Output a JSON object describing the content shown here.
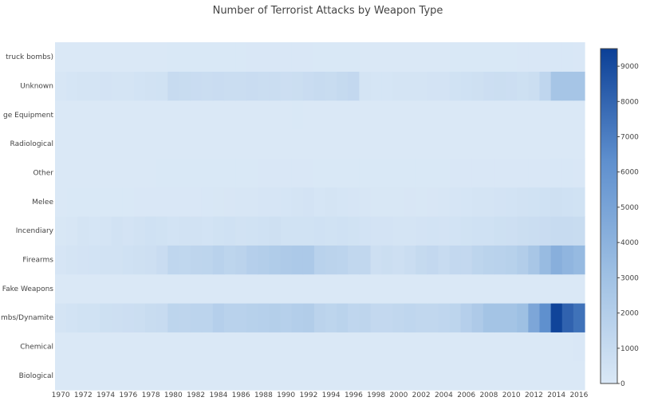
{
  "chart_data": {
    "type": "heatmap",
    "title": "Number of Terrorist Attacks by Weapon Type",
    "xlabel": "",
    "ylabel": "",
    "x": [
      1970,
      1971,
      1972,
      1973,
      1974,
      1975,
      1976,
      1977,
      1978,
      1979,
      1980,
      1981,
      1982,
      1983,
      1984,
      1985,
      1986,
      1987,
      1988,
      1989,
      1990,
      1991,
      1992,
      1993,
      1994,
      1995,
      1996,
      1997,
      1998,
      1999,
      2000,
      2001,
      2002,
      2003,
      2004,
      2005,
      2006,
      2007,
      2008,
      2009,
      2010,
      2011,
      2012,
      2013,
      2014,
      2015,
      2016
    ],
    "x_tick_labels": [
      "1970",
      "1972",
      "1974",
      "1976",
      "1978",
      "1980",
      "1982",
      "1984",
      "1986",
      "1988",
      "1990",
      "1992",
      "1994",
      "1996",
      "1998",
      "2000",
      "2002",
      "2004",
      "2006",
      "2008",
      "2010",
      "2012",
      "2014",
      "2016"
    ],
    "y_labels": [
      "Biological",
      "Chemical",
      "Explosives/Bombs/Dynamite",
      "Fake Weapons",
      "Firearms",
      "Incendiary",
      "Melee",
      "Other",
      "Radiological",
      "Sabotage Equipment",
      "Unknown",
      "Vehicle (not to include vehicle-borne explosives, i.e., car or truck bombs)"
    ],
    "y_tick_texts": [
      "Biological",
      "Chemical",
      "mbs/Dynamite",
      "Fake Weapons",
      "Firearms",
      "Incendiary",
      "Melee",
      "Other",
      "Radiological",
      "ge Equipment",
      "Unknown",
      "truck bombs)"
    ],
    "z": [
      [
        0,
        0,
        0,
        0,
        0,
        0,
        0,
        0,
        0,
        0,
        0,
        0,
        0,
        0,
        0,
        0,
        0,
        0,
        0,
        0,
        0,
        0,
        0,
        0,
        0,
        0,
        0,
        0,
        0,
        0,
        0,
        0,
        0,
        0,
        0,
        0,
        0,
        0,
        0,
        0,
        0,
        0,
        0,
        0,
        0,
        0,
        0
      ],
      [
        0,
        0,
        0,
        0,
        0,
        0,
        0,
        0,
        0,
        0,
        0,
        0,
        0,
        0,
        0,
        0,
        0,
        0,
        0,
        0,
        0,
        0,
        0,
        0,
        0,
        0,
        0,
        0,
        0,
        0,
        0,
        0,
        0,
        0,
        0,
        0,
        0,
        0,
        0,
        0,
        0,
        0,
        0,
        0,
        0,
        0,
        50
      ],
      [
        300,
        400,
        500,
        500,
        650,
        700,
        750,
        800,
        950,
        1000,
        1500,
        1450,
        1550,
        1550,
        1900,
        1700,
        1700,
        1800,
        1850,
        1950,
        1850,
        2000,
        2100,
        1600,
        1500,
        1650,
        1400,
        1450,
        1200,
        1200,
        1300,
        1400,
        1300,
        1300,
        1400,
        1500,
        1900,
        2300,
        2800,
        2800,
        2800,
        3100,
        4800,
        6300,
        9300,
        8100,
        7500
      ],
      [
        0,
        0,
        0,
        0,
        0,
        0,
        0,
        0,
        0,
        0,
        0,
        0,
        0,
        0,
        0,
        0,
        0,
        0,
        0,
        0,
        0,
        0,
        0,
        0,
        0,
        0,
        0,
        0,
        0,
        0,
        0,
        0,
        0,
        0,
        0,
        0,
        0,
        0,
        0,
        0,
        0,
        0,
        0,
        0,
        0,
        0,
        0
      ],
      [
        200,
        300,
        350,
        400,
        450,
        450,
        550,
        600,
        700,
        900,
        1400,
        1350,
        1450,
        1500,
        1700,
        1500,
        1600,
        1900,
        2000,
        2200,
        2300,
        2400,
        2400,
        1700,
        1600,
        1550,
        1300,
        1300,
        700,
        800,
        700,
        850,
        1100,
        1200,
        1000,
        1200,
        1200,
        1500,
        1650,
        1700,
        1800,
        2100,
        2600,
        3400,
        4200,
        3800,
        3500
      ],
      [
        100,
        150,
        300,
        250,
        300,
        450,
        350,
        450,
        550,
        500,
        400,
        450,
        450,
        400,
        500,
        550,
        450,
        500,
        550,
        600,
        500,
        500,
        500,
        550,
        500,
        550,
        500,
        400,
        350,
        350,
        300,
        300,
        350,
        400,
        350,
        400,
        500,
        550,
        550,
        650,
        700,
        800,
        850,
        900,
        1000,
        1000,
        950
      ],
      [
        20,
        30,
        30,
        30,
        30,
        30,
        30,
        40,
        40,
        50,
        60,
        60,
        70,
        80,
        100,
        120,
        140,
        150,
        200,
        200,
        250,
        300,
        350,
        250,
        300,
        250,
        200,
        150,
        100,
        100,
        100,
        120,
        100,
        120,
        150,
        200,
        250,
        300,
        300,
        350,
        400,
        450,
        500,
        550,
        600,
        550,
        500
      ],
      [
        10,
        10,
        10,
        20,
        20,
        20,
        20,
        20,
        20,
        30,
        30,
        30,
        30,
        30,
        30,
        30,
        30,
        30,
        40,
        40,
        40,
        40,
        40,
        30,
        30,
        30,
        30,
        30,
        30,
        30,
        30,
        30,
        30,
        30,
        30,
        40,
        40,
        40,
        40,
        40,
        40,
        50,
        60,
        70,
        80,
        80,
        70
      ],
      [
        0,
        0,
        0,
        0,
        0,
        0,
        0,
        0,
        0,
        0,
        0,
        0,
        0,
        0,
        0,
        0,
        0,
        0,
        0,
        0,
        0,
        0,
        0,
        0,
        0,
        0,
        0,
        0,
        0,
        0,
        0,
        0,
        0,
        0,
        0,
        0,
        0,
        0,
        0,
        0,
        0,
        0,
        0,
        0,
        0,
        0,
        0
      ],
      [
        10,
        5,
        5,
        5,
        5,
        5,
        10,
        10,
        10,
        10,
        15,
        15,
        20,
        20,
        20,
        20,
        20,
        20,
        20,
        20,
        20,
        30,
        20,
        20,
        20,
        20,
        20,
        10,
        5,
        5,
        10,
        10,
        5,
        5,
        5,
        10,
        10,
        10,
        10,
        10,
        10,
        10,
        10,
        10,
        20,
        20,
        10
      ],
      [
        150,
        250,
        300,
        300,
        350,
        300,
        300,
        400,
        450,
        500,
        1000,
        950,
        900,
        850,
        900,
        850,
        850,
        900,
        850,
        850,
        750,
        800,
        900,
        1000,
        950,
        1100,
        1200,
        300,
        250,
        250,
        300,
        300,
        300,
        350,
        350,
        500,
        550,
        600,
        750,
        800,
        750,
        650,
        800,
        1400,
        2700,
        2700,
        2700
      ],
      [
        20,
        10,
        10,
        10,
        10,
        10,
        10,
        20,
        20,
        20,
        30,
        30,
        30,
        30,
        30,
        30,
        30,
        40,
        40,
        40,
        40,
        40,
        40,
        30,
        30,
        30,
        30,
        20,
        20,
        20,
        20,
        20,
        20,
        20,
        20,
        30,
        30,
        30,
        30,
        30,
        30,
        40,
        50,
        70,
        80,
        80,
        70
      ]
    ],
    "zmin": 0,
    "zmax": 9500,
    "colorscale": [
      "#dae8f6",
      "#9dbfe3",
      "#5e8fce",
      "#0b3f96"
    ],
    "colorbar_ticks": [
      0,
      1000,
      2000,
      3000,
      4000,
      5000,
      6000,
      7000,
      8000,
      9000
    ],
    "colorbar_tick_labels": [
      "0",
      "1000",
      "2000",
      "3000",
      "4000",
      "5000",
      "6000",
      "7000",
      "8000",
      "9000"
    ],
    "grid": false
  }
}
